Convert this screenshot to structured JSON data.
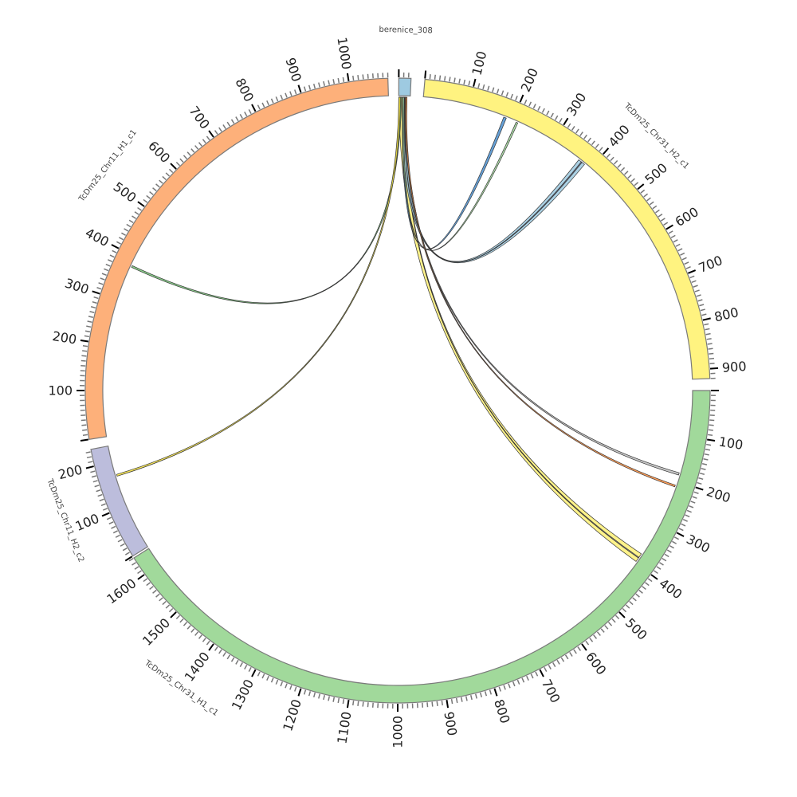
{
  "segments": [
    {
      "id": "berenice",
      "name": "berenice_308",
      "length": 25,
      "color": "#9ecae1",
      "tick_labels": []
    },
    {
      "id": "chr31_h2",
      "name": "TcDm25_Chr31_H2_c1",
      "length": 920,
      "color": "#fff380",
      "tick_labels": [
        "100",
        "200",
        "300",
        "400",
        "500",
        "600",
        "700",
        "800",
        "900"
      ]
    },
    {
      "id": "chr31_h1",
      "name": "TcDm25_Chr31_H1_c1",
      "length": 1640,
      "color": "#a1d99b",
      "tick_labels": [
        "100",
        "200",
        "300",
        "400",
        "500",
        "600",
        "700",
        "800",
        "900",
        "1000",
        "1100",
        "1200",
        "1300",
        "1400",
        "1500",
        "1600"
      ]
    },
    {
      "id": "chr11_h2",
      "name": "TcDm25_Chr11_H2_c2",
      "length": 235,
      "color": "#bcbddc",
      "tick_labels": [
        "100",
        "200"
      ]
    },
    {
      "id": "chr11_h1",
      "name": "TcDm25_Chr11_H1_c1",
      "length": 1080,
      "color": "#fdb07a",
      "tick_labels": [
        "100",
        "200",
        "300",
        "400",
        "500",
        "600",
        "700",
        "800",
        "900",
        "1000"
      ]
    }
  ],
  "links": [
    {
      "from": [
        "berenice",
        1,
        13
      ],
      "to": [
        "chr31_h1",
        376,
        396
      ],
      "color": "#fff176"
    },
    {
      "from": [
        "berenice",
        12,
        13
      ],
      "to": [
        "chr31_h1",
        385,
        387
      ],
      "color": "#8c8ca8"
    },
    {
      "from": [
        "berenice",
        8,
        18
      ],
      "to": [
        "chr31_h2",
        368,
        384
      ],
      "color": "#9ecae1"
    },
    {
      "from": [
        "berenice",
        13,
        14
      ],
      "to": [
        "chr31_h2",
        375,
        377
      ],
      "color": "#8080a0"
    },
    {
      "from": [
        "berenice",
        8,
        12
      ],
      "to": [
        "chr31_h2",
        180,
        186
      ],
      "color": "#4a8fd0"
    },
    {
      "from": [
        "berenice",
        9,
        12
      ],
      "to": [
        "chr31_h2",
        209,
        213
      ],
      "color": "#a1d99b"
    },
    {
      "from": [
        "berenice",
        14,
        17
      ],
      "to": [
        "chr31_h1",
        181,
        186
      ],
      "color": "#bdbdbd"
    },
    {
      "from": [
        "berenice",
        15,
        18
      ],
      "to": [
        "chr31_h1",
        209,
        213
      ],
      "color": "#fd8d3c"
    },
    {
      "from": [
        "berenice",
        2,
        6
      ],
      "to": [
        "chr11_h1",
        376,
        380
      ],
      "color": "#74c476"
    },
    {
      "from": [
        "berenice",
        0,
        4
      ],
      "to": [
        "chr11_h2",
        167,
        171
      ],
      "color": "#f5e13c"
    }
  ]
}
